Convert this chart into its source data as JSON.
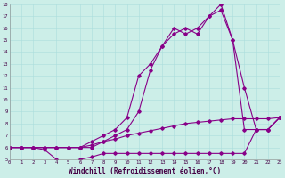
{
  "xlabel": "Windchill (Refroidissement éolien,°C)",
  "bg_color": "#cceee8",
  "line_color": "#880088",
  "xmin": 0,
  "xmax": 23,
  "ymin": 5,
  "ymax": 18,
  "series": [
    {
      "x": [
        0,
        1,
        2,
        3,
        4,
        5,
        6,
        7,
        8,
        9,
        10,
        11,
        12,
        13,
        14,
        15,
        16,
        17,
        18,
        19,
        20,
        21,
        22,
        23
      ],
      "y": [
        6,
        6,
        6,
        6,
        6,
        6,
        6,
        6.2,
        6.5,
        6.7,
        7,
        7.2,
        7.4,
        7.6,
        7.8,
        8,
        8.1,
        8.2,
        8.3,
        8.4,
        8.4,
        8.4,
        8.4,
        8.5
      ]
    },
    {
      "x": [
        0,
        1,
        2,
        3,
        4,
        5,
        6,
        7,
        8,
        9,
        10,
        11,
        12,
        13,
        14,
        15,
        16,
        17,
        18,
        19,
        20,
        21,
        22,
        23
      ],
      "y": [
        6,
        6,
        6,
        5.8,
        5,
        4.8,
        5,
        5.2,
        5.5,
        5.5,
        5.5,
        5.5,
        5.5,
        5.5,
        5.5,
        5.5,
        5.5,
        5.5,
        5.5,
        5.5,
        5.5,
        7.5,
        7.5,
        8.5
      ]
    },
    {
      "x": [
        0,
        1,
        2,
        3,
        4,
        5,
        6,
        7,
        8,
        9,
        10,
        11,
        12,
        13,
        14,
        15,
        16,
        17,
        18,
        19,
        20,
        21,
        22,
        23
      ],
      "y": [
        6,
        6,
        6,
        6,
        6,
        6,
        6,
        6.5,
        7,
        7.5,
        8.5,
        12,
        13,
        14.5,
        15.5,
        16,
        15.5,
        17,
        17.5,
        15,
        11,
        7.5,
        7.5,
        8.5
      ]
    },
    {
      "x": [
        0,
        1,
        2,
        3,
        4,
        5,
        6,
        7,
        8,
        9,
        10,
        11,
        12,
        13,
        14,
        15,
        16,
        17,
        18,
        19,
        20,
        21,
        22,
        23
      ],
      "y": [
        6,
        6,
        6,
        6,
        6,
        6,
        6,
        6,
        6.5,
        7,
        7.5,
        9,
        12.5,
        14.5,
        16,
        15.5,
        16,
        17,
        18,
        15,
        7.5,
        7.5,
        7.5,
        8.5
      ]
    }
  ]
}
